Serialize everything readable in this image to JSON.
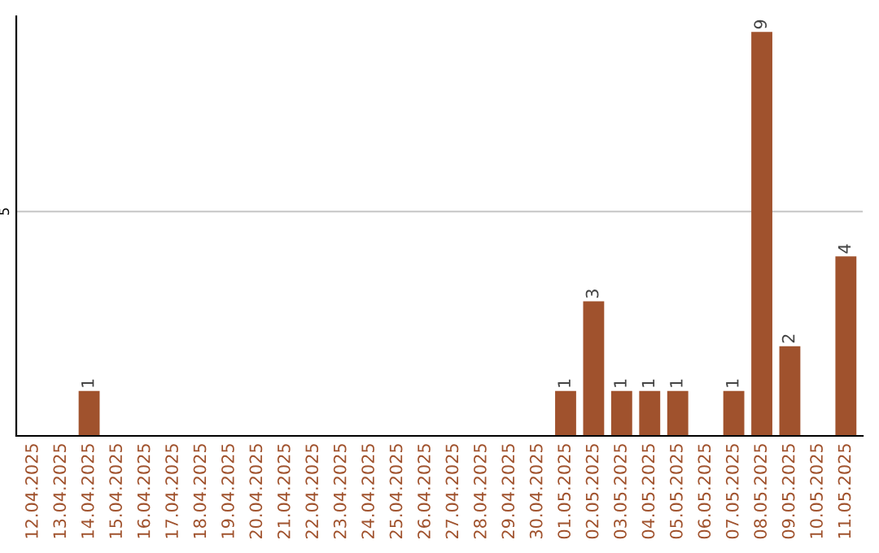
{
  "chart_data": {
    "type": "bar",
    "categories": [
      "12.04.2025",
      "13.04.2025",
      "14.04.2025",
      "15.04.2025",
      "16.04.2025",
      "17.04.2025",
      "18.04.2025",
      "19.04.2025",
      "20.04.2025",
      "21.04.2025",
      "22.04.2025",
      "23.04.2025",
      "24.04.2025",
      "25.04.2025",
      "26.04.2025",
      "27.04.2025",
      "28.04.2025",
      "29.04.2025",
      "30.04.2025",
      "01.05.2025",
      "02.05.2025",
      "03.05.2025",
      "04.05.2025",
      "05.05.2025",
      "06.05.2025",
      "07.05.2025",
      "08.05.2025",
      "09.05.2025",
      "10.05.2025",
      "11.05.2025"
    ],
    "values": [
      0,
      0,
      1,
      0,
      0,
      0,
      0,
      0,
      0,
      0,
      0,
      0,
      0,
      0,
      0,
      0,
      0,
      0,
      0,
      1,
      3,
      1,
      1,
      1,
      0,
      1,
      9,
      2,
      0,
      4
    ],
    "value_labels": [
      null,
      null,
      "1",
      null,
      null,
      null,
      null,
      null,
      null,
      null,
      null,
      null,
      null,
      null,
      null,
      null,
      null,
      null,
      null,
      "1",
      "3",
      "1",
      "1",
      "1",
      null,
      "1",
      "9",
      "2",
      null,
      "4"
    ],
    "color": "#a0522d",
    "ylim": [
      0,
      9.35
    ],
    "yticks": [
      5
    ],
    "grid": "y"
  }
}
